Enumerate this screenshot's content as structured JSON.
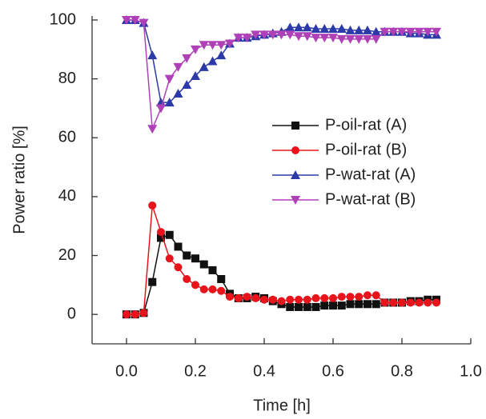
{
  "chart_data": {
    "type": "line",
    "xlabel": "Time [h]",
    "ylabel": "Power ratio [%]",
    "xlim": [
      -0.1,
      1.0
    ],
    "ylim": [
      -10,
      100
    ],
    "xticks": [
      {
        "value": 0,
        "label": "0.0"
      },
      0.2,
      0.4,
      0.6,
      0.8,
      {
        "value": 1,
        "label": "1.0"
      }
    ],
    "yticks": [
      0,
      20,
      40,
      60,
      80,
      100
    ],
    "grid": false,
    "legend": "right",
    "x": [
      0,
      0.025,
      0.05,
      0.075,
      0.1,
      0.125,
      0.15,
      0.175,
      0.2,
      0.225,
      0.25,
      0.275,
      0.3,
      0.325,
      0.35,
      0.375,
      0.4,
      0.425,
      0.45,
      0.475,
      0.5,
      0.525,
      0.55,
      0.575,
      0.6,
      0.625,
      0.65,
      0.675,
      0.7,
      0.725,
      0.75,
      0.775,
      0.8,
      0.825,
      0.85,
      0.875,
      0.9
    ],
    "series": [
      {
        "name": "P-oil-rat (A)",
        "color": "#111111",
        "marker": "square",
        "values": [
          0,
          0,
          0.5,
          11,
          26,
          27,
          23,
          20,
          19,
          17,
          15,
          12,
          7,
          5.5,
          5.5,
          6,
          5.5,
          4.5,
          3.5,
          2.5,
          2.5,
          2.5,
          2.5,
          3,
          3,
          3,
          3.5,
          3.5,
          3.5,
          3.5,
          4,
          4,
          4,
          4.5,
          4.5,
          5,
          5
        ]
      },
      {
        "name": "P-oil-rat (B)",
        "color": "#e8141c",
        "marker": "circle",
        "values": [
          0,
          0,
          0.5,
          37,
          28,
          19,
          16,
          12,
          10,
          8.5,
          8.5,
          8,
          6,
          5.5,
          6,
          5.5,
          5,
          5,
          4.5,
          5,
          5,
          5,
          5.5,
          5.5,
          5.5,
          6,
          6,
          6,
          6.5,
          6.5,
          4,
          4,
          4,
          4,
          4,
          4,
          4
        ]
      },
      {
        "name": "P-wat-rat (A)",
        "color": "#2b3aa8",
        "marker": "triangle-up",
        "values": [
          100,
          100,
          99,
          88,
          72,
          72,
          75,
          78,
          81,
          84,
          86,
          88,
          92,
          94,
          94,
          94.5,
          95,
          95.5,
          96,
          97.5,
          97.5,
          97.5,
          97,
          97,
          97,
          97,
          96.5,
          96.5,
          96.5,
          96,
          96,
          96,
          96,
          95.5,
          95.5,
          95,
          95
        ]
      },
      {
        "name": "P-wat-rat (B)",
        "color": "#b040b8",
        "marker": "triangle-down",
        "values": [
          100,
          100,
          99,
          63,
          70,
          80,
          84,
          87,
          90,
          91.5,
          91.5,
          91.5,
          92,
          94,
          94,
          95,
          95,
          95,
          95,
          95,
          94.5,
          94.5,
          94,
          94,
          94,
          93.5,
          93.5,
          93.5,
          93.5,
          93.5,
          96,
          96,
          96,
          96,
          96,
          96,
          96
        ]
      }
    ]
  }
}
